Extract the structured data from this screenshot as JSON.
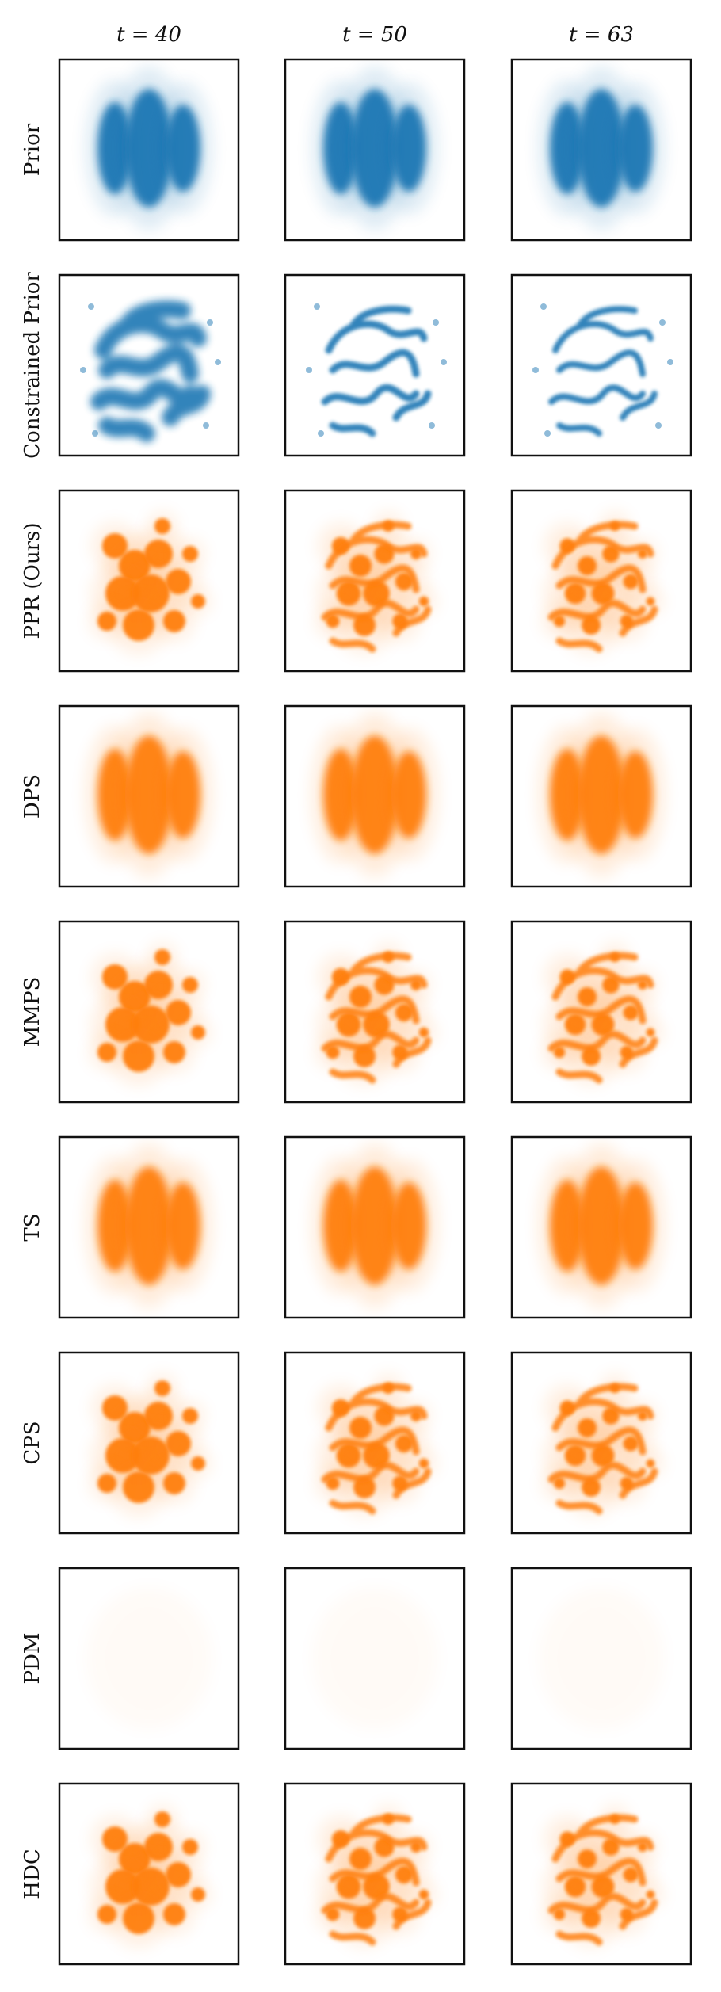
{
  "columns": [
    "t = 40",
    "t = 50",
    "t = 63"
  ],
  "rows": [
    "Prior",
    "Constrained Prior",
    "PPR (Ours)",
    "DPS",
    "MMPS",
    "TS",
    "CPS",
    "PDM",
    "HDC"
  ]
}
